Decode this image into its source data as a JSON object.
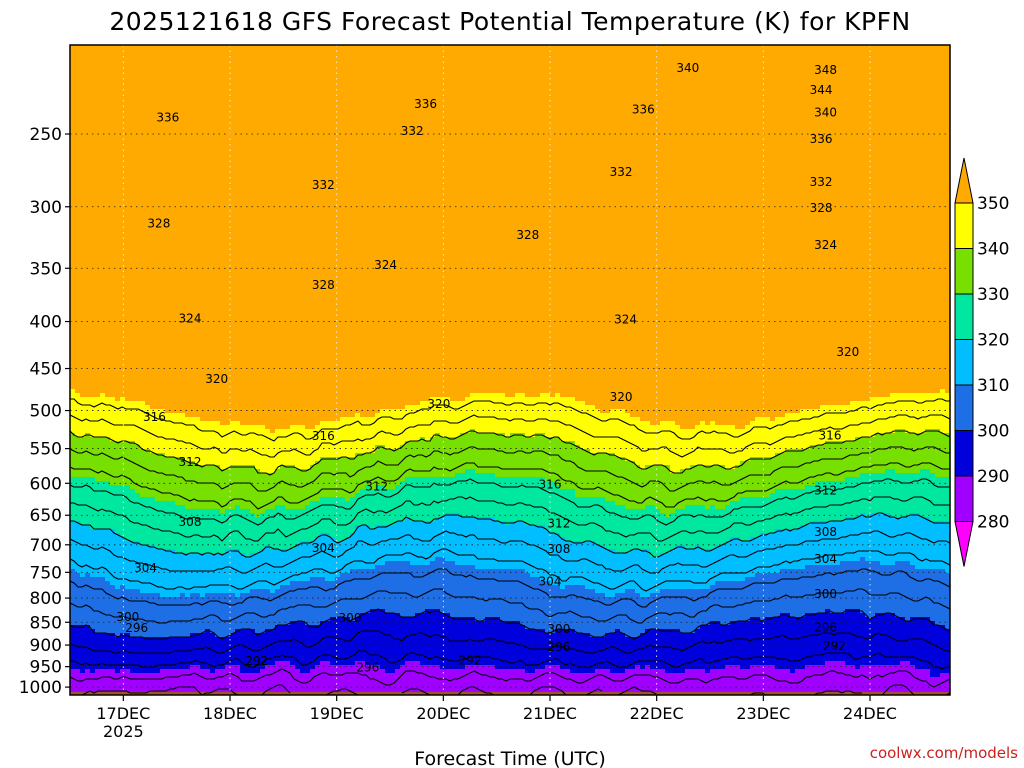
{
  "chart_data": {
    "type": "heatmap",
    "title": "2025121618 GFS Forecast Potential Temperature (K) for KPFN",
    "xlabel": "Forecast Time (UTC)",
    "ylabel": "",
    "credit": "coolwx.com/models",
    "pressure_ticks": [
      250,
      300,
      350,
      400,
      450,
      500,
      550,
      600,
      650,
      700,
      750,
      800,
      850,
      900,
      950,
      1000
    ],
    "pressure_range_hpa": [
      200,
      1020
    ],
    "x_range_hours": [
      -12,
      186
    ],
    "date_ticks": [
      {
        "hour": 0,
        "label": "17DEC",
        "year": "2025"
      },
      {
        "hour": 24,
        "label": "18DEC"
      },
      {
        "hour": 48,
        "label": "19DEC"
      },
      {
        "hour": 72,
        "label": "20DEC"
      },
      {
        "hour": 96,
        "label": "21DEC"
      },
      {
        "hour": 120,
        "label": "22DEC"
      },
      {
        "hour": 144,
        "label": "23DEC"
      },
      {
        "hour": 168,
        "label": "24DEC"
      }
    ],
    "colorbar": {
      "levels": [
        280,
        290,
        300,
        310,
        320,
        330,
        340,
        350
      ],
      "colors": [
        "#a000ff",
        "#0000dd",
        "#1e6ee6",
        "#00beff",
        "#00e8a0",
        "#78e000",
        "#ffff00",
        "#ffaa00"
      ],
      "under_color": "#ff00ff",
      "over_color": "#ffaa00"
    },
    "contour_interval": 4,
    "contour_labels": [
      {
        "value": 340,
        "hour": 127,
        "p": 212
      },
      {
        "value": 348,
        "hour": 158,
        "p": 213
      },
      {
        "value": 344,
        "hour": 157,
        "p": 224
      },
      {
        "value": 340,
        "hour": 158,
        "p": 237
      },
      {
        "value": 336,
        "hour": 157,
        "p": 253
      },
      {
        "value": 332,
        "hour": 157,
        "p": 282
      },
      {
        "value": 336,
        "hour": 10,
        "p": 240
      },
      {
        "value": 336,
        "hour": 68,
        "p": 232
      },
      {
        "value": 332,
        "hour": 65,
        "p": 248
      },
      {
        "value": 336,
        "hour": 117,
        "p": 235
      },
      {
        "value": 332,
        "hour": 112,
        "p": 275
      },
      {
        "value": 332,
        "hour": 45,
        "p": 284
      },
      {
        "value": 328,
        "hour": 8,
        "p": 313
      },
      {
        "value": 328,
        "hour": 157,
        "p": 301
      },
      {
        "value": 328,
        "hour": 91,
        "p": 322
      },
      {
        "value": 324,
        "hour": 158,
        "p": 330
      },
      {
        "value": 324,
        "hour": 59,
        "p": 347
      },
      {
        "value": 328,
        "hour": 45,
        "p": 365
      },
      {
        "value": 324,
        "hour": 15,
        "p": 397
      },
      {
        "value": 324,
        "hour": 113,
        "p": 398
      },
      {
        "value": 320,
        "hour": 163,
        "p": 432
      },
      {
        "value": 320,
        "hour": 21,
        "p": 462
      },
      {
        "value": 320,
        "hour": 112,
        "p": 483
      },
      {
        "value": 320,
        "hour": 71,
        "p": 492
      },
      {
        "value": 316,
        "hour": 7,
        "p": 508
      },
      {
        "value": 316,
        "hour": 45,
        "p": 533
      },
      {
        "value": 316,
        "hour": 159,
        "p": 532
      },
      {
        "value": 312,
        "hour": 15,
        "p": 569
      },
      {
        "value": 316,
        "hour": 96,
        "p": 602
      },
      {
        "value": 312,
        "hour": 57,
        "p": 605
      },
      {
        "value": 312,
        "hour": 158,
        "p": 611
      },
      {
        "value": 308,
        "hour": 15,
        "p": 661
      },
      {
        "value": 312,
        "hour": 98,
        "p": 664
      },
      {
        "value": 308,
        "hour": 158,
        "p": 678
      },
      {
        "value": 304,
        "hour": 45,
        "p": 706
      },
      {
        "value": 308,
        "hour": 98,
        "p": 707
      },
      {
        "value": 304,
        "hour": 158,
        "p": 725
      },
      {
        "value": 304,
        "hour": 5,
        "p": 742
      },
      {
        "value": 304,
        "hour": 96,
        "p": 767
      },
      {
        "value": 300,
        "hour": 158,
        "p": 792
      },
      {
        "value": 300,
        "hour": 1,
        "p": 839
      },
      {
        "value": 300,
        "hour": 51,
        "p": 841
      },
      {
        "value": 296,
        "hour": 3,
        "p": 862
      },
      {
        "value": 300,
        "hour": 98,
        "p": 865
      },
      {
        "value": 296,
        "hour": 158,
        "p": 861
      },
      {
        "value": 296,
        "hour": 98,
        "p": 904
      },
      {
        "value": 292,
        "hour": 160,
        "p": 902
      },
      {
        "value": 292,
        "hour": 30,
        "p": 937
      },
      {
        "value": 292,
        "hour": 78,
        "p": 935
      },
      {
        "value": 296,
        "hour": 55,
        "p": 952
      }
    ]
  }
}
